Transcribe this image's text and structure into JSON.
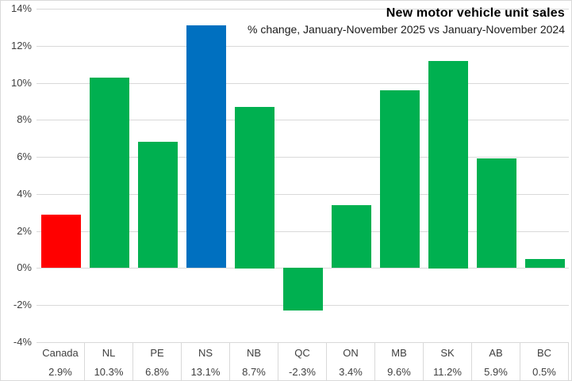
{
  "chart_data": {
    "type": "bar",
    "title": "New motor vehicle unit sales",
    "subtitle": "% change, January-November 2025 vs January-November 2024",
    "categories": [
      "Canada",
      "NL",
      "PE",
      "NS",
      "NB",
      "QC",
      "ON",
      "MB",
      "SK",
      "AB",
      "BC"
    ],
    "values": [
      2.9,
      10.3,
      6.8,
      13.1,
      8.7,
      -2.3,
      3.4,
      9.6,
      11.2,
      5.9,
      0.5
    ],
    "value_labels": [
      "2.9%",
      "10.3%",
      "6.8%",
      "13.1%",
      "8.7%",
      "-2.3%",
      "3.4%",
      "9.6%",
      "11.2%",
      "5.9%",
      "0.5%"
    ],
    "bar_colors": [
      "#ff0000",
      "#00b050",
      "#00b050",
      "#0070c0",
      "#00b050",
      "#00b050",
      "#00b050",
      "#00b050",
      "#00b050",
      "#00b050",
      "#00b050"
    ],
    "ylim": [
      -4,
      14
    ],
    "ytick_step": 2,
    "ytick_labels": [
      "14%",
      "12%",
      "10%",
      "8%",
      "6%",
      "4%",
      "2%",
      "0%",
      "-2%",
      "-4%"
    ],
    "grid": true,
    "legend_position": "none",
    "colors": {
      "grid": "#d9d9d9",
      "axis_text": "#404040",
      "border": "#d9d9d9",
      "background": "#ffffff"
    }
  }
}
